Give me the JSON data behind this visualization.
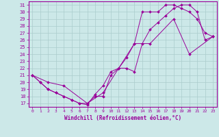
{
  "xlabel": "Windchill (Refroidissement éolien,°C)",
  "xlim": [
    -0.5,
    23.5
  ],
  "ylim": [
    16.5,
    31.5
  ],
  "xticks": [
    0,
    1,
    2,
    3,
    4,
    5,
    6,
    7,
    8,
    9,
    10,
    11,
    12,
    13,
    14,
    15,
    16,
    17,
    18,
    19,
    20,
    21,
    22,
    23
  ],
  "yticks": [
    17,
    18,
    19,
    20,
    21,
    22,
    23,
    24,
    25,
    26,
    27,
    28,
    29,
    30,
    31
  ],
  "line_color": "#990099",
  "bg_color": "#cce8e8",
  "grid_color": "#aacccc",
  "line1_x": [
    0,
    1,
    2,
    3,
    4,
    5,
    6,
    7,
    8,
    9,
    10,
    11,
    12,
    13,
    14,
    15,
    16,
    17,
    18,
    19,
    20,
    21,
    22,
    23
  ],
  "line1_y": [
    21,
    20,
    19,
    18.5,
    18,
    17.5,
    17,
    16.8,
    18.3,
    19.5,
    21.5,
    22,
    23.5,
    25.5,
    30,
    30,
    30,
    31,
    31,
    30.5,
    30,
    29,
    27,
    26.5
  ],
  "line2_x": [
    0,
    1,
    2,
    3,
    4,
    5,
    6,
    7,
    8,
    9,
    10,
    11,
    12,
    13,
    14,
    15,
    16,
    17,
    18,
    19,
    20,
    21,
    22,
    23
  ],
  "line2_y": [
    21,
    20,
    19,
    18.5,
    18,
    17.5,
    17,
    17,
    18,
    18,
    21,
    22,
    22,
    21.5,
    25.5,
    27.5,
    28.5,
    29.5,
    30.5,
    31,
    31,
    30,
    26,
    26.5
  ],
  "line3_x": [
    0,
    2,
    4,
    7,
    9,
    11,
    13,
    15,
    18,
    20,
    23
  ],
  "line3_y": [
    21,
    20,
    19.5,
    17,
    18.5,
    22,
    25.5,
    25.5,
    29,
    24,
    26.5
  ]
}
